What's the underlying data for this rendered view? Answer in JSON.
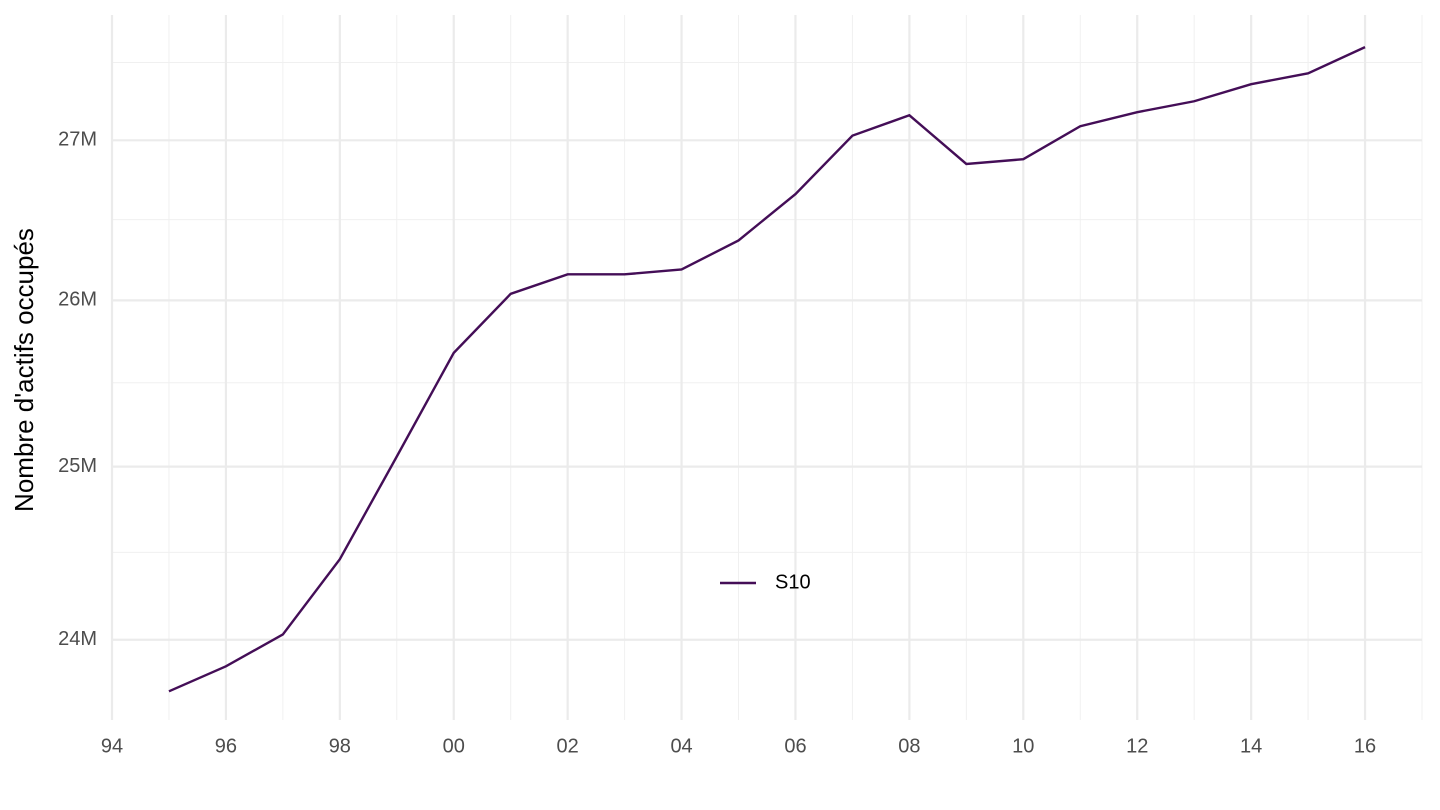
{
  "chart_data": {
    "type": "line",
    "y_label": "Nombre d'actifs occupés",
    "x": [
      1995,
      1996,
      1997,
      1998,
      1999,
      2000,
      2001,
      2002,
      2003,
      2004,
      2005,
      2006,
      2007,
      2008,
      2009,
      2010,
      2011,
      2012,
      2013,
      2014,
      2015,
      2016
    ],
    "series": [
      {
        "name": "S10",
        "color": "#440e57",
        "values": [
          23710000,
          23850000,
          24030000,
          24460000,
          25060000,
          25680000,
          26040000,
          26160000,
          26160000,
          26190000,
          26370000,
          26660000,
          27030000,
          27160000,
          26850000,
          26880000,
          27090000,
          27180000,
          27250000,
          27360000,
          27430000,
          27600000
        ]
      }
    ],
    "xlim": [
      1994,
      2017
    ],
    "xticks": [
      {
        "value": 1994,
        "label": "94"
      },
      {
        "value": 1996,
        "label": "96"
      },
      {
        "value": 1998,
        "label": "98"
      },
      {
        "value": 2000,
        "label": "00"
      },
      {
        "value": 2002,
        "label": "02"
      },
      {
        "value": 2004,
        "label": "04"
      },
      {
        "value": 2006,
        "label": "06"
      },
      {
        "value": 2008,
        "label": "08"
      },
      {
        "value": 2010,
        "label": "10"
      },
      {
        "value": 2012,
        "label": "12"
      },
      {
        "value": 2014,
        "label": "14"
      },
      {
        "value": 2016,
        "label": "16"
      }
    ],
    "xminor": [
      1995,
      1997,
      1999,
      2001,
      2003,
      2005,
      2007,
      2009,
      2011,
      2013,
      2015,
      2017
    ],
    "ylim": [
      23550000,
      27810000
    ],
    "y_log": true,
    "yticks": [
      {
        "value": 24000000,
        "label": "24M"
      },
      {
        "value": 25000000,
        "label": "25M"
      },
      {
        "value": 26000000,
        "label": "26M"
      },
      {
        "value": 27000000,
        "label": "27M"
      }
    ],
    "yminor": [
      24500000,
      25500000,
      26500000,
      27500000
    ],
    "grid": true,
    "legend_position": "inside-bottom-center"
  }
}
